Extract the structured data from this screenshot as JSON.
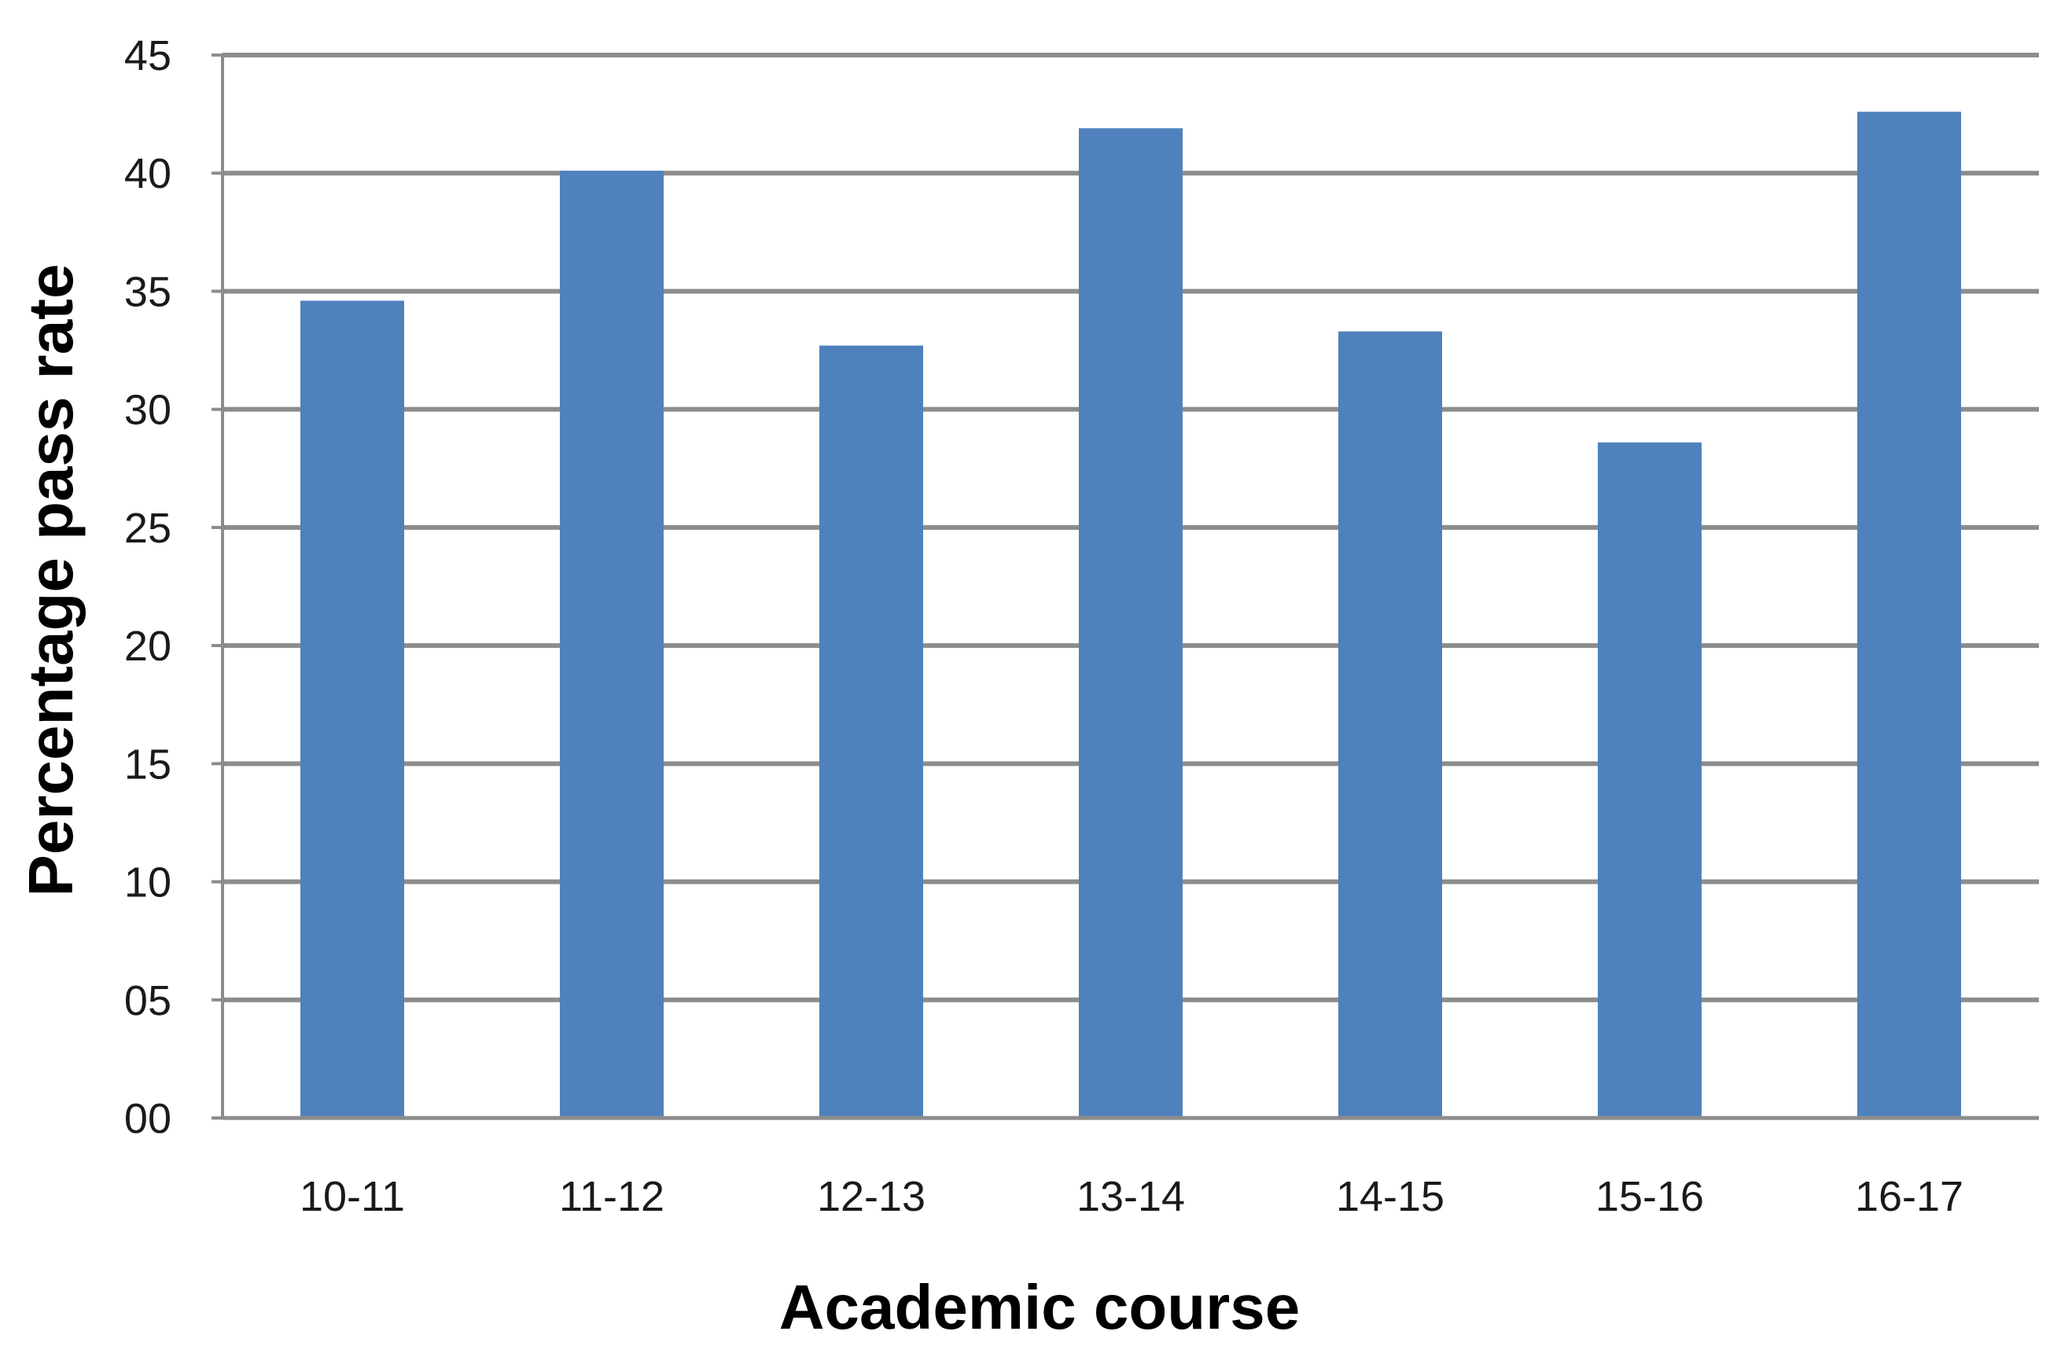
{
  "chart_data": {
    "type": "bar",
    "title": "",
    "xlabel": "Academic course",
    "ylabel": "Percentage pass rate",
    "categories": [
      "10-11",
      "11-12",
      "12-13",
      "13-14",
      "14-15",
      "15-16",
      "16-17"
    ],
    "series": [
      {
        "values": [
          34.6,
          40.1,
          32.7,
          41.9,
          33.3,
          28.6,
          42.6
        ]
      }
    ],
    "ylim": [
      0,
      45
    ],
    "yticks": [
      0,
      5,
      10,
      15,
      20,
      25,
      30,
      35,
      40,
      45
    ],
    "ytick_labels": [
      "00",
      "05",
      "10",
      "15",
      "20",
      "25",
      "30",
      "35",
      "40",
      "45"
    ],
    "grid": true,
    "legend": "none",
    "colors": {
      "bar": "#4f81bd",
      "grid": "#8c8c8c",
      "axis": "#8c8c8c"
    }
  }
}
